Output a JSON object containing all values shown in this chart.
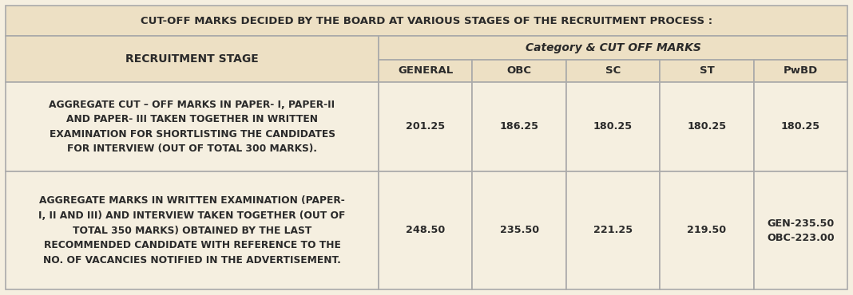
{
  "title": "CUT-OFF MARKS DECIDED BY THE BOARD AT VARIOUS STAGES OF THE RECRUITMENT PROCESS :",
  "subheader_left": "RECRUITMENT STAGE",
  "subheader_right": "Category & CUT OFF MARKS",
  "col_headers": [
    "GENERAL",
    "OBC",
    "SC",
    "ST",
    "PwBD"
  ],
  "row1_label": "AGGREGATE CUT – OFF MARKS IN PAPER- I, PAPER-II\nAND PAPER- III TAKEN TOGETHER IN WRITTEN\nEXAMINATION FOR SHORTLISTING THE CANDIDATES\nFOR INTERVIEW (OUT OF TOTAL 300 MARKS).",
  "row2_label": "AGGREGATE MARKS IN WRITTEN EXAMINATION (PAPER-\nI, II AND III) AND INTERVIEW TAKEN TOGETHER (OUT OF\nTOTAL 350 MARKS) OBTAINED BY THE LAST\nRECOMMENDED CANDIDATE WITH REFERENCE TO THE\nNO. OF VACANCIES NOTIFIED IN THE ADVERTISEMENT.",
  "row1_values": [
    "201.25",
    "186.25",
    "180.25",
    "180.25",
    "180.25"
  ],
  "row2_values": [
    "248.50",
    "235.50",
    "221.25",
    "219.50",
    "GEN-235.50\nOBC-223.00"
  ],
  "bg_color": "#f5efe0",
  "header_bg": "#ede0c4",
  "border_color": "#aaaaaa",
  "text_color": "#2a2a2a"
}
